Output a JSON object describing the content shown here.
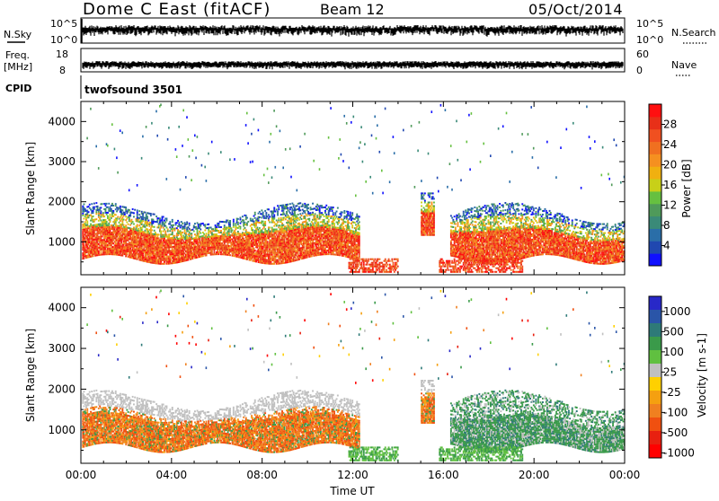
{
  "header": {
    "site": "Dome C East (fitACF)",
    "beam": "Beam 12",
    "date": "05/Oct/2014"
  },
  "top_panels": {
    "nsky_label": "N.Sky",
    "nsearch_label": "N.Search",
    "log_top": "10^5",
    "log_bottom": "10^0",
    "freq_label_1": "Freq.",
    "freq_label_2": "[MHz]",
    "freq_top": "18",
    "freq_bottom": "8",
    "nave_label": "Nave",
    "nave_top": "60",
    "nave_bottom": "0",
    "cpid_label": "CPID",
    "cpid_value": "twofsound 3501"
  },
  "chart_data": [
    {
      "type": "heatmap",
      "title": "",
      "quantity": "Power",
      "xlabel": "",
      "ylabel": "Slant Range [km]",
      "xlim": [
        0,
        24
      ],
      "ylim": [
        180,
        4500
      ],
      "y_ticks": [
        1000,
        2000,
        3000,
        4000
      ],
      "colorbar": {
        "label": "Power [dB]",
        "tick_labels": [
          "4",
          "8",
          "12",
          "16",
          "20",
          "24",
          "28"
        ],
        "colors": [
          "#1010ff",
          "#2048b0",
          "#2a6ea8",
          "#3a8a78",
          "#4f9a5a",
          "#66c040",
          "#c8d018",
          "#f0b010",
          "#f59020",
          "#f07020",
          "#f05020",
          "#e83018",
          "#ff1010"
        ]
      }
    },
    {
      "type": "heatmap",
      "title": "",
      "quantity": "Velocity",
      "xlabel": "Time UT",
      "ylabel": "Slant Range [km]",
      "xlim": [
        0,
        24
      ],
      "ylim": [
        180,
        4500
      ],
      "x_tick_labels": [
        "00:00",
        "04:00",
        "08:00",
        "12:00",
        "16:00",
        "20:00",
        "00:00"
      ],
      "y_ticks": [
        1000,
        2000,
        3000,
        4000
      ],
      "colorbar": {
        "label": "Velocity [m s-1]",
        "tick_labels": [
          "1000",
          "500",
          "100",
          "25",
          "-25",
          "-100",
          "-500",
          "-1000"
        ],
        "colors": [
          "#2828c8",
          "#2a55a8",
          "#2e7a78",
          "#3a9a4a",
          "#60c040",
          "#c0c0c0",
          "#ffd000",
          "#f5a010",
          "#f08020",
          "#f05010",
          "#e82010",
          "#ff0000"
        ]
      }
    }
  ]
}
